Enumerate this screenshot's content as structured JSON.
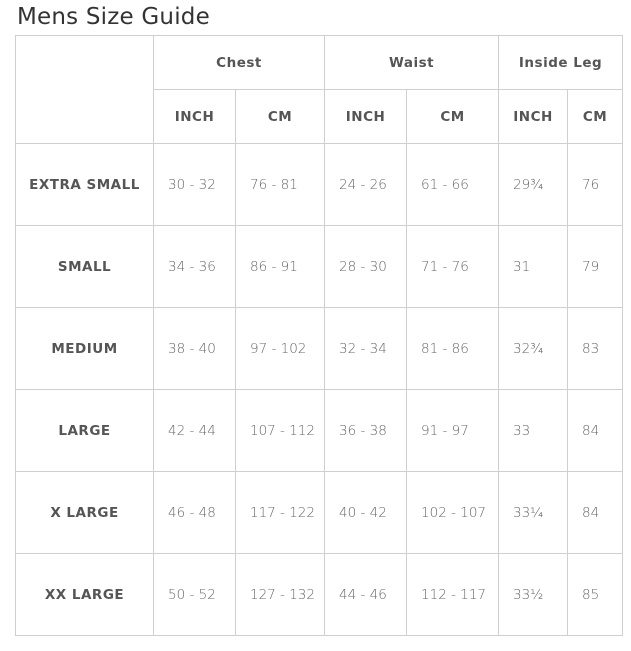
{
  "title": "Mens Size Guide",
  "groups": [
    "Chest",
    "Waist",
    "Inside Leg"
  ],
  "units": [
    "INCH",
    "CM",
    "INCH",
    "CM",
    "INCH",
    "CM"
  ],
  "rows": [
    {
      "size": "EXTRA SMALL",
      "values": [
        "30 - 32",
        "76 - 81",
        "24 - 26",
        "61 - 66",
        "29¾",
        "76"
      ]
    },
    {
      "size": "SMALL",
      "values": [
        "34 - 36",
        "86 - 91",
        "28 - 30",
        "71 - 76",
        "31",
        "79"
      ]
    },
    {
      "size": "MEDIUM",
      "values": [
        "38 - 40",
        "97 - 102",
        "32 - 34",
        "81 - 86",
        "32¾",
        "83"
      ]
    },
    {
      "size": "LARGE",
      "values": [
        "42 - 44",
        "107 - 112",
        "36 - 38",
        "91 - 97",
        "33",
        "84"
      ]
    },
    {
      "size": "X LARGE",
      "values": [
        "46 - 48",
        "117 - 122",
        "40 - 42",
        "102 - 107",
        "33¼",
        "84"
      ]
    },
    {
      "size": "XX LARGE",
      "values": [
        "50 - 52",
        "127 - 132",
        "44 - 46",
        "112 - 117",
        "33½",
        "85"
      ]
    }
  ]
}
